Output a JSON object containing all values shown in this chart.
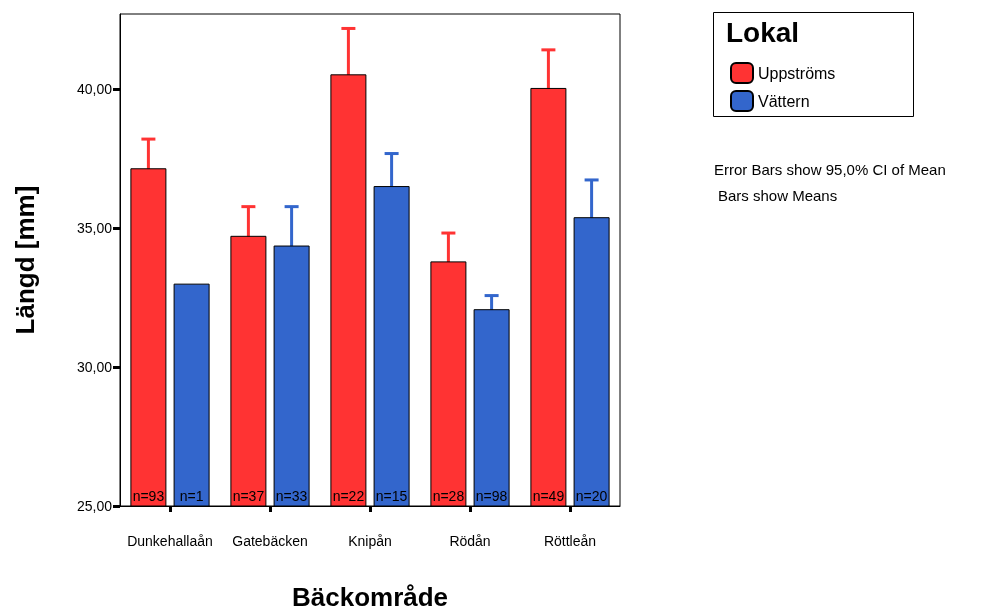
{
  "chart_data": {
    "type": "bar",
    "xlabel": "Bäckområde",
    "ylabel": "Längd [mm]",
    "legend_title": "Lokal",
    "categories": [
      "Dunkehallaån",
      "Gatebäcken",
      "Knipån",
      "Rödån",
      "Röttleån"
    ],
    "series": [
      {
        "name": "Uppströms",
        "color": "#ff3333",
        "values": [
          37.15,
          34.72,
          40.53,
          33.8,
          40.04
        ],
        "errors": [
          1.05,
          1.05,
          1.65,
          1.02,
          1.37
        ]
      },
      {
        "name": "Vättern",
        "color": "#3366cc",
        "values": [
          33.0,
          34.37,
          36.51,
          32.08,
          35.39
        ],
        "errors": [
          null,
          1.4,
          1.17,
          0.49,
          1.34
        ]
      }
    ],
    "ylim": [
      25,
      42.7
    ],
    "yticks": [
      {
        "value": 25,
        "label": "25,00"
      },
      {
        "value": 30,
        "label": "30,00"
      },
      {
        "value": 35,
        "label": "35,00"
      },
      {
        "value": 40,
        "label": "40,00"
      }
    ],
    "grid": false,
    "legend": "top right",
    "annotations": [
      {
        "text": "n=93",
        "x": "Dunkehallaån",
        "y": 25
      },
      {
        "text": "n=1",
        "x": "Dunkehallaån",
        "y": 25
      },
      {
        "text": "n=37",
        "x": "Gatebäcken",
        "y": 25
      },
      {
        "text": "n=33",
        "x": "Gatebäcken",
        "y": 25
      },
      {
        "text": "n=22",
        "x": "Knipån",
        "y": 25
      },
      {
        "text": "n=15",
        "x": "Knipån",
        "y": 25
      },
      {
        "text": "n=28",
        "x": "Rödån",
        "y": 25
      },
      {
        "text": "n=98",
        "x": "Rödån",
        "y": 25
      },
      {
        "text": "n=49",
        "x": "Röttleån",
        "y": 25
      },
      {
        "text": "n=20",
        "x": "Röttleån",
        "y": 25
      },
      "Error Bars show 95,0% CI of Mean",
      "Bars show Means"
    ]
  }
}
